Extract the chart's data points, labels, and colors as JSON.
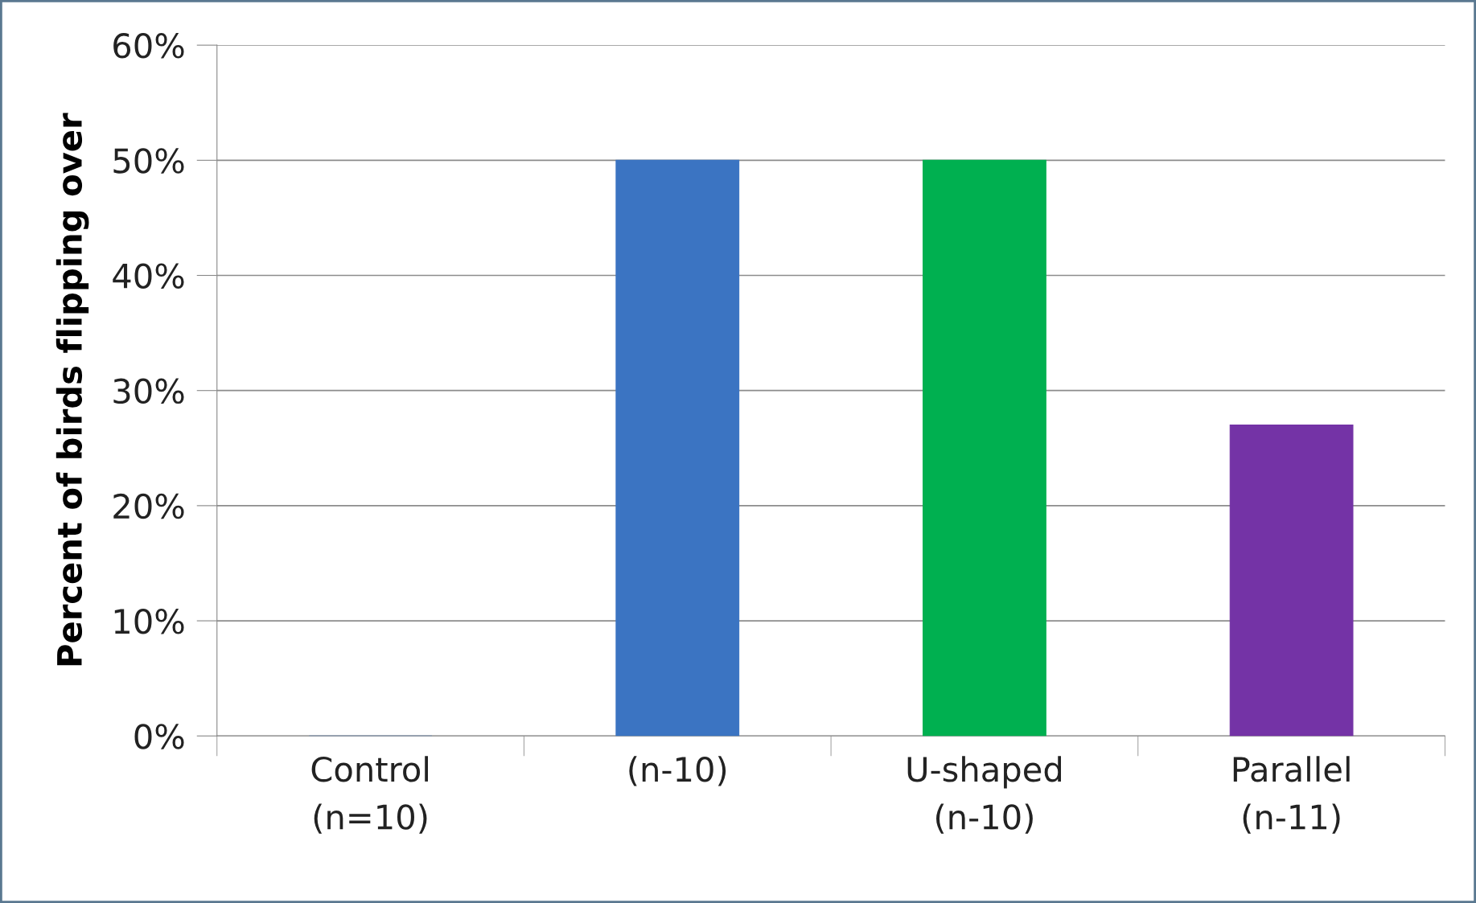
{
  "chart_data": {
    "type": "bar",
    "ylabel": "Percent of birds flipping over",
    "categories": [
      "Control\n(n=10)",
      "(n-10)",
      "U-shaped\n(n-10)",
      "Parallel\n(n-11)"
    ],
    "values": [
      0,
      50,
      50,
      27
    ],
    "colors": [
      "#4f81bd",
      "#3b74c2",
      "#00b050",
      "#7433a6"
    ],
    "ylim": [
      0,
      60
    ],
    "yticks": [
      {
        "value": 0,
        "label": "0%"
      },
      {
        "value": 10,
        "label": "10%"
      },
      {
        "value": 20,
        "label": "20%"
      },
      {
        "value": 30,
        "label": "30%"
      },
      {
        "value": 40,
        "label": "40%"
      },
      {
        "value": 50,
        "label": "50%"
      },
      {
        "value": 60,
        "label": "60%"
      }
    ],
    "grid": "y"
  }
}
